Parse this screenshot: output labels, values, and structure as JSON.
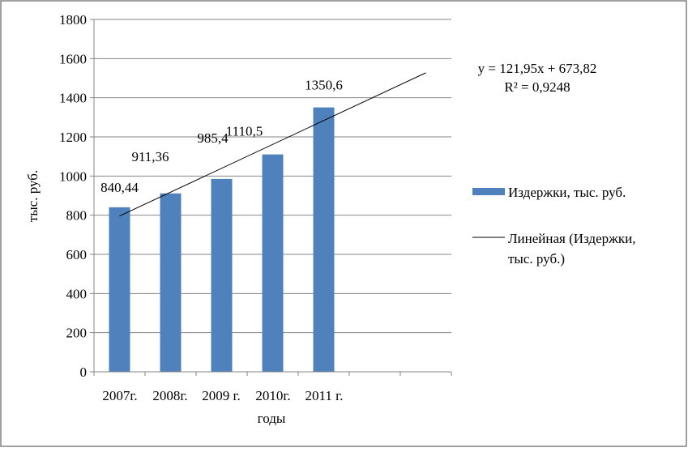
{
  "chart_data": {
    "type": "bar",
    "categories": [
      "2007г.",
      "2008г.",
      "2009 г.",
      "2010г.",
      "2011 г.",
      "",
      ""
    ],
    "series": [
      {
        "name": "Издержки, тыс. руб.",
        "values": [
          840.44,
          911.36,
          985.4,
          1110.5,
          1350.6,
          null,
          null
        ],
        "data_labels": [
          "840,44",
          "911,36",
          "985,4",
          "1110,5",
          "1350,6"
        ],
        "color": "#4f81bd"
      }
    ],
    "trendline": {
      "name": "Линейная (Издержки, тыс. руб.)",
      "type": "linear",
      "slope": 121.95,
      "intercept": 673.82,
      "x_start": 1,
      "x_end": 7,
      "equation_lines": [
        "y = 121,95x + 673,82",
        "R² = 0,9248"
      ],
      "color": "#000000"
    },
    "title": "",
    "xlabel": "годы",
    "ylabel": "тыс. руб.",
    "ylim": [
      0,
      1800
    ],
    "yticks": [
      0,
      200,
      400,
      600,
      800,
      1000,
      1200,
      1400,
      1600,
      1800
    ],
    "ytick_labels": [
      "0",
      "200",
      "400",
      "600",
      "800",
      "1000",
      "1200",
      "1400",
      "1600",
      "1800"
    ],
    "grid": true,
    "legend": {
      "position": "right",
      "entries": [
        {
          "label": "Издержки, тыс. руб.",
          "symbol": "bar"
        },
        {
          "label_lines": [
            "Линейная (Издержки,",
            "тыс. руб.)"
          ],
          "symbol": "line"
        }
      ]
    },
    "colors": {
      "grid": "#868686",
      "axis": "#868686",
      "frame": "#808080"
    }
  }
}
